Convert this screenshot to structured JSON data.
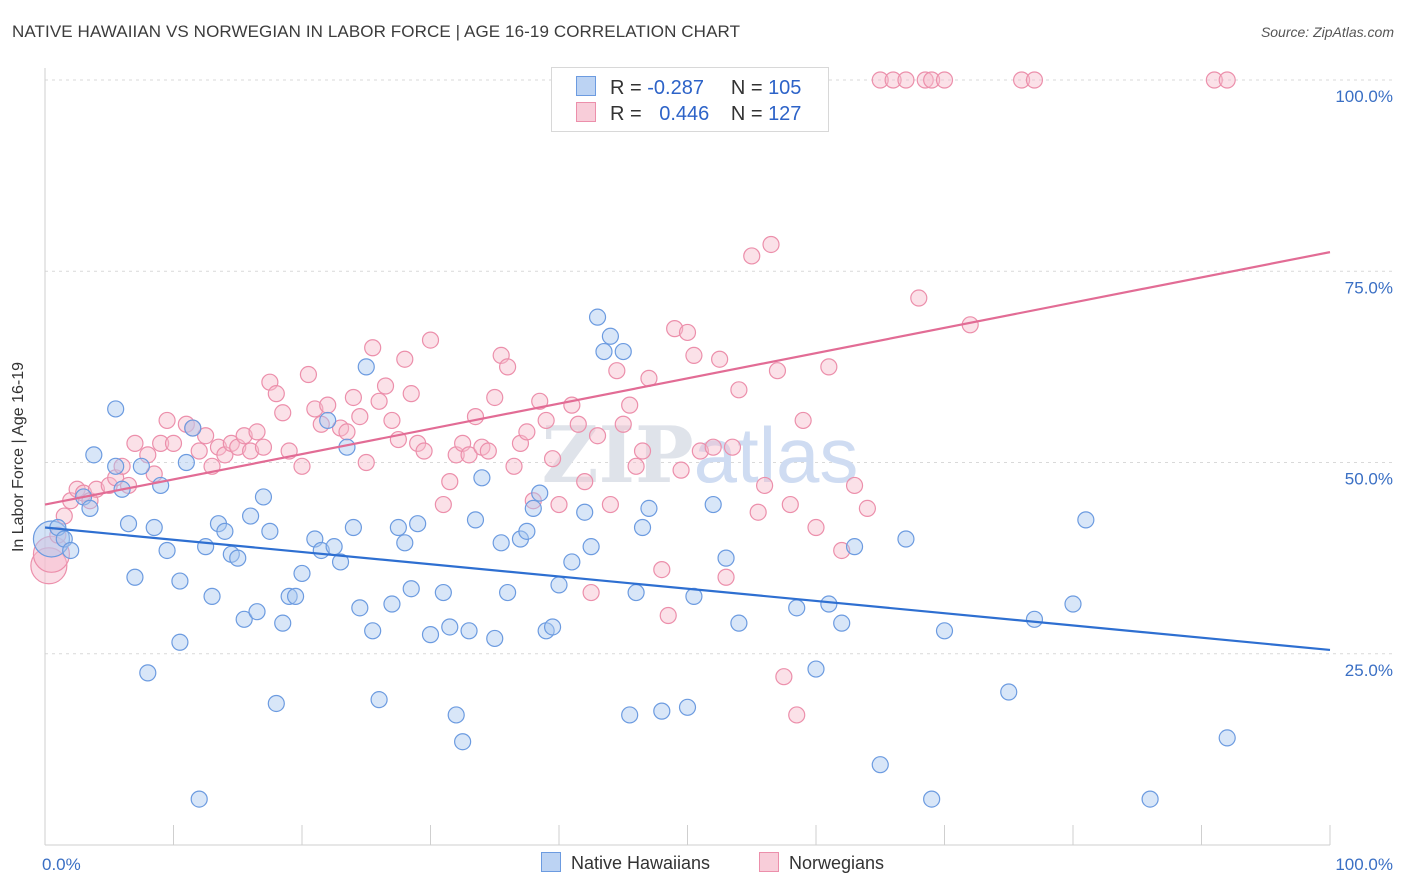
{
  "title": "NATIVE HAWAIIAN VS NORWEGIAN IN LABOR FORCE | AGE 16-19 CORRELATION CHART",
  "source": "Source: ZipAtlas.com",
  "watermark": "ZIPatlas",
  "legend": {
    "r_label": "R =",
    "n_label": "N =",
    "series1": {
      "r": "-0.287",
      "n": "105"
    },
    "series2": {
      "r": "0.446",
      "n": "127"
    }
  },
  "colors": {
    "blue_fill": "#a9c7f0",
    "blue_stroke": "#6c9be0",
    "blue_line": "#2e6fd1",
    "pink_fill": "#f6bccd",
    "pink_stroke": "#ec8fab",
    "pink_line": "#e26c95",
    "tick_text": "#3a6fc4"
  },
  "chart_data": {
    "type": "scatter",
    "title": "NATIVE HAWAIIAN VS NORWEGIAN IN LABOR FORCE | AGE 16-19 CORRELATION CHART",
    "xlabel": "",
    "ylabel": "In Labor Force | Age 16-19",
    "xlim": [
      0,
      100
    ],
    "ylim": [
      0,
      102
    ],
    "x_tick_labels": [
      "0.0%",
      "100.0%"
    ],
    "y_ticks": [
      25,
      50,
      75,
      100
    ],
    "y_tick_labels": [
      "25.0%",
      "50.0%",
      "75.0%",
      "100.0%"
    ],
    "grid": "horizontal dashed",
    "legend_position": "bottom",
    "series": [
      {
        "name": "Native Hawaiians",
        "r": -0.287,
        "n": 105,
        "trend": [
          [
            0,
            41.5
          ],
          [
            100,
            25.5
          ]
        ],
        "points": [
          [
            0.5,
            40
          ],
          [
            1,
            41.5
          ],
          [
            1.5,
            40
          ],
          [
            2,
            38.5
          ],
          [
            3,
            45.5
          ],
          [
            3.5,
            44
          ],
          [
            3.8,
            51
          ],
          [
            5.5,
            57
          ],
          [
            5.5,
            49.5
          ],
          [
            6,
            46.5
          ],
          [
            6.5,
            42
          ],
          [
            7,
            35
          ],
          [
            7.5,
            49.5
          ],
          [
            8,
            22.5
          ],
          [
            8.5,
            41.5
          ],
          [
            9,
            47
          ],
          [
            9.5,
            38.5
          ],
          [
            10.5,
            26.5
          ],
          [
            10.5,
            34.5
          ],
          [
            11,
            50
          ],
          [
            11.5,
            54.5
          ],
          [
            12,
            6
          ],
          [
            12.5,
            39
          ],
          [
            13,
            32.5
          ],
          [
            13.5,
            42
          ],
          [
            14,
            41
          ],
          [
            14.5,
            38
          ],
          [
            15,
            37.5
          ],
          [
            15.5,
            29.5
          ],
          [
            16,
            43
          ],
          [
            16.5,
            30.5
          ],
          [
            17,
            45.5
          ],
          [
            17.5,
            41
          ],
          [
            18,
            18.5
          ],
          [
            18.5,
            29
          ],
          [
            19,
            32.5
          ],
          [
            19.5,
            32.5
          ],
          [
            20,
            35.5
          ],
          [
            21,
            40
          ],
          [
            21.5,
            38.5
          ],
          [
            22,
            55.5
          ],
          [
            22.5,
            39
          ],
          [
            23,
            37
          ],
          [
            23.5,
            52
          ],
          [
            24,
            41.5
          ],
          [
            24.5,
            31
          ],
          [
            25,
            62.5
          ],
          [
            25.5,
            28
          ],
          [
            26,
            19
          ],
          [
            27,
            31.5
          ],
          [
            27.5,
            41.5
          ],
          [
            28,
            39.5
          ],
          [
            28.5,
            33.5
          ],
          [
            29,
            42
          ],
          [
            30,
            27.5
          ],
          [
            31,
            33
          ],
          [
            31.5,
            28.5
          ],
          [
            32,
            17
          ],
          [
            32.5,
            13.5
          ],
          [
            33,
            28
          ],
          [
            33.5,
            42.5
          ],
          [
            34,
            48
          ],
          [
            35,
            27
          ],
          [
            35.5,
            39.5
          ],
          [
            36,
            33
          ],
          [
            37,
            40
          ],
          [
            37.5,
            41
          ],
          [
            38,
            44
          ],
          [
            38.5,
            46
          ],
          [
            39,
            28
          ],
          [
            39.5,
            28.5
          ],
          [
            40,
            34
          ],
          [
            41,
            37
          ],
          [
            42,
            43.5
          ],
          [
            42.5,
            39
          ],
          [
            43,
            69
          ],
          [
            43.5,
            64.5
          ],
          [
            44,
            66.5
          ],
          [
            45,
            64.5
          ],
          [
            45.5,
            17
          ],
          [
            46,
            33
          ],
          [
            46.5,
            41.5
          ],
          [
            47,
            44
          ],
          [
            48,
            17.5
          ],
          [
            50,
            18
          ],
          [
            50.5,
            32.5
          ],
          [
            52,
            44.5
          ],
          [
            53,
            37.5
          ],
          [
            54,
            29
          ],
          [
            58.5,
            31
          ],
          [
            60,
            23
          ],
          [
            61,
            31.5
          ],
          [
            62,
            29
          ],
          [
            63,
            39
          ],
          [
            65,
            10.5
          ],
          [
            67,
            40
          ],
          [
            69,
            6
          ],
          [
            70,
            28
          ],
          [
            75,
            20
          ],
          [
            77,
            29.5
          ],
          [
            80,
            31.5
          ],
          [
            81,
            42.5
          ],
          [
            86,
            6
          ],
          [
            92,
            14
          ]
        ]
      },
      {
        "name": "Norwegians",
        "r": 0.446,
        "n": 127,
        "trend": [
          [
            0,
            44.5
          ],
          [
            100,
            77.5
          ]
        ],
        "points": [
          [
            0.3,
            36.5
          ],
          [
            0.5,
            38
          ],
          [
            1,
            40.5
          ],
          [
            1.5,
            43
          ],
          [
            2,
            45
          ],
          [
            2.5,
            46.5
          ],
          [
            3,
            46
          ],
          [
            3.5,
            45
          ],
          [
            4,
            46.5
          ],
          [
            5,
            47
          ],
          [
            5.5,
            48
          ],
          [
            6,
            49.5
          ],
          [
            6.5,
            47
          ],
          [
            7,
            52.5
          ],
          [
            8,
            51
          ],
          [
            8.5,
            48.5
          ],
          [
            9,
            52.5
          ],
          [
            9.5,
            55.5
          ],
          [
            10,
            52.5
          ],
          [
            11,
            55
          ],
          [
            11.5,
            54.5
          ],
          [
            12,
            51.5
          ],
          [
            12.5,
            53.5
          ],
          [
            13,
            49.5
          ],
          [
            13.5,
            52
          ],
          [
            14,
            51
          ],
          [
            14.5,
            52.5
          ],
          [
            15,
            52
          ],
          [
            15.5,
            53.5
          ],
          [
            16,
            51.5
          ],
          [
            16.5,
            54
          ],
          [
            17,
            52
          ],
          [
            17.5,
            60.5
          ],
          [
            18,
            59
          ],
          [
            18.5,
            56.5
          ],
          [
            19,
            51.5
          ],
          [
            20,
            49.5
          ],
          [
            20.5,
            61.5
          ],
          [
            21,
            57
          ],
          [
            21.5,
            55
          ],
          [
            22,
            57.5
          ],
          [
            23,
            54.5
          ],
          [
            23.5,
            54
          ],
          [
            24,
            58.5
          ],
          [
            24.5,
            56
          ],
          [
            25,
            50
          ],
          [
            25.5,
            65
          ],
          [
            26,
            58
          ],
          [
            26.5,
            60
          ],
          [
            27,
            55.5
          ],
          [
            27.5,
            53
          ],
          [
            28,
            63.5
          ],
          [
            28.5,
            59
          ],
          [
            29,
            52.5
          ],
          [
            29.5,
            51.5
          ],
          [
            30,
            66
          ],
          [
            31,
            44.5
          ],
          [
            31.5,
            47.5
          ],
          [
            32,
            51
          ],
          [
            32.5,
            52.5
          ],
          [
            33,
            51
          ],
          [
            33.5,
            56
          ],
          [
            34,
            52
          ],
          [
            34.5,
            51.5
          ],
          [
            35,
            58.5
          ],
          [
            35.5,
            64
          ],
          [
            36,
            62.5
          ],
          [
            36.5,
            49.5
          ],
          [
            37,
            52.5
          ],
          [
            37.5,
            54
          ],
          [
            38,
            45
          ],
          [
            38.5,
            58
          ],
          [
            39,
            55.5
          ],
          [
            39.5,
            50.5
          ],
          [
            40,
            44.5
          ],
          [
            41,
            57.5
          ],
          [
            41.5,
            55
          ],
          [
            42,
            47.5
          ],
          [
            42.5,
            33
          ],
          [
            43,
            53.5
          ],
          [
            44,
            44.5
          ],
          [
            44.5,
            62
          ],
          [
            45,
            55
          ],
          [
            45.5,
            57.5
          ],
          [
            46,
            49.5
          ],
          [
            46.5,
            51.5
          ],
          [
            47,
            61
          ],
          [
            48,
            36
          ],
          [
            48.5,
            30
          ],
          [
            49,
            67.5
          ],
          [
            49.5,
            49
          ],
          [
            50,
            67
          ],
          [
            50.5,
            64
          ],
          [
            51,
            51.5
          ],
          [
            52,
            52
          ],
          [
            52.5,
            63.5
          ],
          [
            53,
            35
          ],
          [
            53.5,
            52
          ],
          [
            54,
            59.5
          ],
          [
            55,
            77
          ],
          [
            55.5,
            43.5
          ],
          [
            56,
            47
          ],
          [
            56.5,
            78.5
          ],
          [
            57,
            62
          ],
          [
            57.5,
            22
          ],
          [
            58,
            44.5
          ],
          [
            58.5,
            17
          ],
          [
            59,
            55.5
          ],
          [
            60,
            41.5
          ],
          [
            61,
            62.5
          ],
          [
            62,
            38.5
          ],
          [
            63,
            47
          ],
          [
            64,
            44
          ],
          [
            65,
            100
          ],
          [
            66,
            100
          ],
          [
            67,
            100
          ],
          [
            68,
            71.5
          ],
          [
            68.5,
            100
          ],
          [
            69,
            100
          ],
          [
            70,
            100
          ],
          [
            72,
            68
          ],
          [
            76,
            100
          ],
          [
            77,
            100
          ],
          [
            91,
            100
          ],
          [
            92,
            100
          ]
        ]
      }
    ]
  },
  "bottom_legend": {
    "series1": "Native Hawaiians",
    "series2": "Norwegians"
  }
}
